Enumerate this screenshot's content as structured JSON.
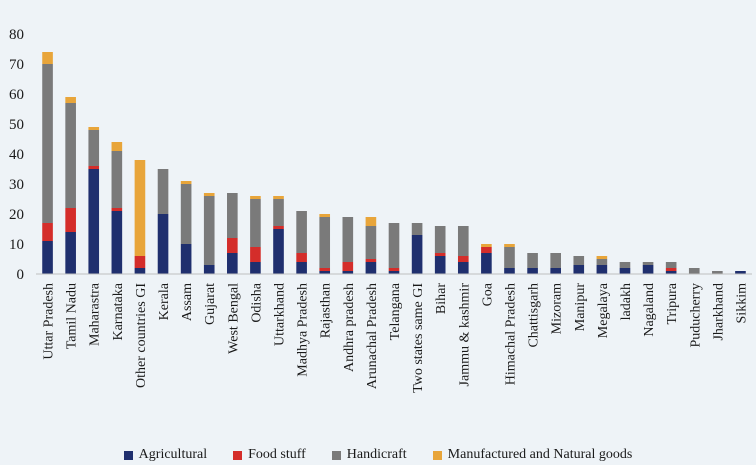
{
  "chart_data": {
    "type": "bar",
    "stacked": true,
    "title": "",
    "xlabel": "",
    "ylabel": "",
    "ylim": [
      0,
      80
    ],
    "yticks": [
      0,
      10,
      20,
      30,
      40,
      50,
      60,
      70,
      80
    ],
    "grid": false,
    "legend_position": "bottom",
    "categories": [
      "Uttar Pradesh",
      "Tamil Nadu",
      "Maharastra",
      "Karnataka",
      "Other countries GI",
      "Kerala",
      "Assam",
      "Gujarat",
      "West Bengal",
      "Odisha",
      "Uttarkhand",
      "Madhya Pradesh",
      "Rajasthan",
      "Andhra pradesh",
      "Arunachal Pradesh",
      "Telangana",
      "Two states same GI",
      "Bihar",
      "Jammu & kashmir",
      "Goa",
      "Himachal Pradesh",
      "Chattisgarh",
      "Mizoram",
      "Manipur",
      "Megalaya",
      "ladakh",
      "Nagaland",
      "Tripura",
      "Puducherry",
      "Jharkhand",
      "Sikkim"
    ],
    "series": [
      {
        "name": "Agricultural",
        "color": "#1f2f6e",
        "values": [
          11,
          14,
          35,
          21,
          2,
          20,
          10,
          3,
          7,
          4,
          15,
          4,
          1,
          1,
          4,
          1,
          13,
          6,
          4,
          7,
          2,
          2,
          2,
          3,
          3,
          2,
          3,
          1,
          0,
          0,
          1
        ]
      },
      {
        "name": "Food stuff",
        "color": "#d42d2a",
        "values": [
          6,
          8,
          1,
          1,
          4,
          0,
          0,
          0,
          5,
          5,
          1,
          3,
          1,
          3,
          1,
          1,
          0,
          1,
          2,
          2,
          0,
          0,
          0,
          0,
          0,
          0,
          0,
          1,
          0,
          0,
          0
        ]
      },
      {
        "name": "Handicraft",
        "color": "#7a7a7a",
        "values": [
          53,
          35,
          12,
          19,
          0,
          15,
          20,
          23,
          15,
          16,
          9,
          14,
          17,
          15,
          11,
          15,
          4,
          9,
          10,
          0,
          7,
          5,
          5,
          3,
          2,
          2,
          1,
          2,
          2,
          1,
          0
        ]
      },
      {
        "name": "Manufactured and Natural goods",
        "color": "#e8a53a",
        "values": [
          4,
          2,
          1,
          3,
          32,
          0,
          1,
          1,
          0,
          1,
          1,
          0,
          1,
          0,
          3,
          0,
          0,
          0,
          0,
          1,
          1,
          0,
          0,
          0,
          1,
          0,
          0,
          0,
          0,
          0,
          0
        ]
      }
    ]
  }
}
